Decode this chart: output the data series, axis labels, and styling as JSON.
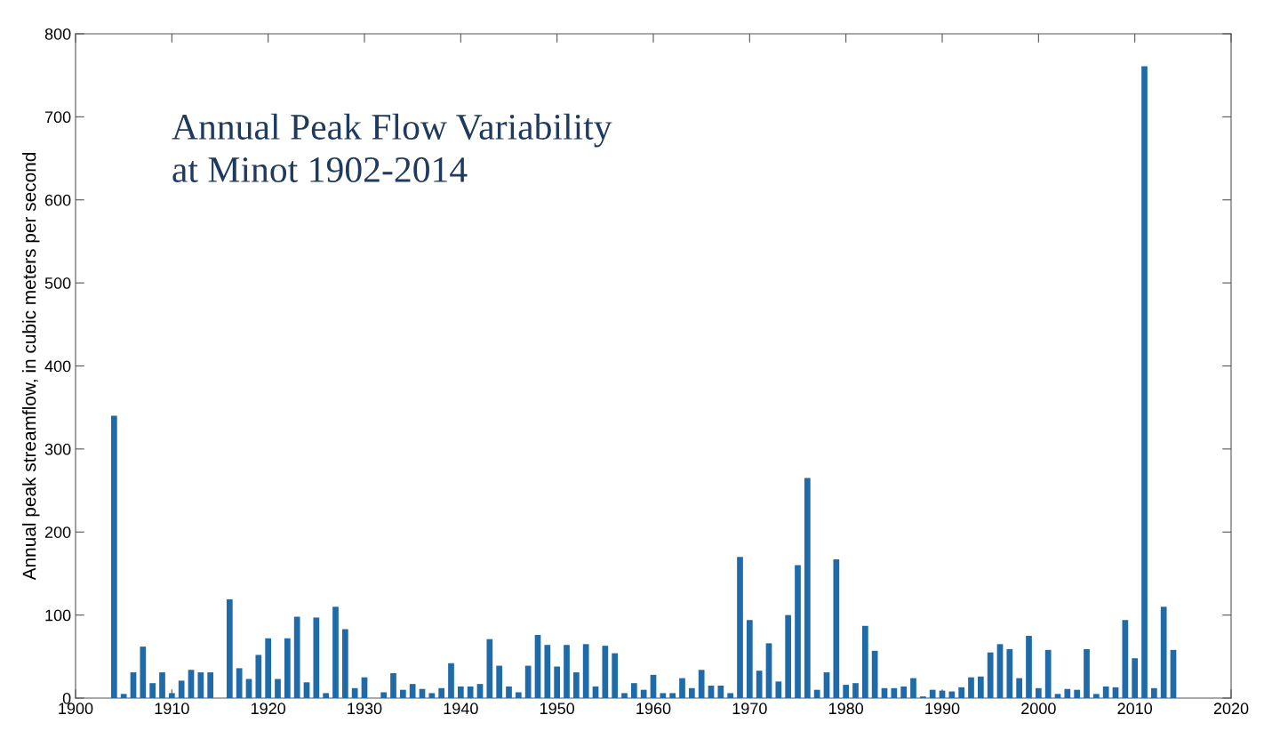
{
  "chart_data": {
    "type": "bar",
    "title": "Annual Peak Flow Variability\nat Minot 1902-2014",
    "ylabel": "Annual peak streamflow, in cubic meters per second",
    "x": [
      1904,
      1905,
      1906,
      1907,
      1908,
      1909,
      1910,
      1911,
      1912,
      1913,
      1914,
      1915,
      1916,
      1917,
      1918,
      1919,
      1920,
      1921,
      1922,
      1923,
      1924,
      1925,
      1926,
      1927,
      1928,
      1929,
      1930,
      1931,
      1932,
      1933,
      1934,
      1935,
      1936,
      1937,
      1938,
      1939,
      1940,
      1941,
      1942,
      1943,
      1944,
      1945,
      1946,
      1947,
      1948,
      1949,
      1950,
      1951,
      1952,
      1953,
      1954,
      1955,
      1956,
      1957,
      1958,
      1959,
      1960,
      1961,
      1962,
      1963,
      1964,
      1965,
      1966,
      1967,
      1968,
      1969,
      1970,
      1971,
      1972,
      1973,
      1974,
      1975,
      1976,
      1977,
      1978,
      1979,
      1980,
      1981,
      1982,
      1983,
      1984,
      1985,
      1986,
      1987,
      1988,
      1989,
      1990,
      1991,
      1992,
      1993,
      1994,
      1995,
      1996,
      1997,
      1998,
      1999,
      2000,
      2001,
      2002,
      2003,
      2004,
      2005,
      2006,
      2007,
      2008,
      2009,
      2010,
      2011,
      2012,
      2013,
      2014
    ],
    "values": [
      340,
      5,
      31,
      62,
      18,
      31,
      6,
      21,
      34,
      31,
      31,
      null,
      119,
      36,
      23,
      52,
      72,
      23,
      72,
      98,
      19,
      97,
      6,
      110,
      83,
      12,
      25,
      null,
      7,
      30,
      10,
      17,
      11,
      6,
      12,
      42,
      14,
      14,
      17,
      71,
      39,
      14,
      7,
      39,
      76,
      64,
      38,
      64,
      31,
      65,
      14,
      63,
      54,
      6,
      18,
      10,
      28,
      6,
      6,
      24,
      12,
      34,
      15,
      15,
      6,
      170,
      94,
      33,
      66,
      20,
      100,
      160,
      265,
      10,
      31,
      167,
      16,
      18,
      87,
      57,
      12,
      12,
      14,
      24,
      2,
      10,
      9,
      8,
      13,
      25,
      26,
      55,
      65,
      59,
      24,
      75,
      12,
      58,
      5,
      11,
      10,
      59,
      5,
      14,
      13,
      94,
      48,
      761,
      12,
      110,
      58
    ],
    "color": "#1f6aa8",
    "xlim": [
      1900,
      2020
    ],
    "xticks": [
      1900,
      1910,
      1920,
      1930,
      1940,
      1950,
      1960,
      1970,
      1980,
      1990,
      2000,
      2010,
      2020
    ],
    "ylim": [
      0,
      800
    ],
    "yticks": [
      0,
      100,
      200,
      300,
      400,
      500,
      600,
      700,
      800
    ],
    "grid": false,
    "legend": false
  }
}
